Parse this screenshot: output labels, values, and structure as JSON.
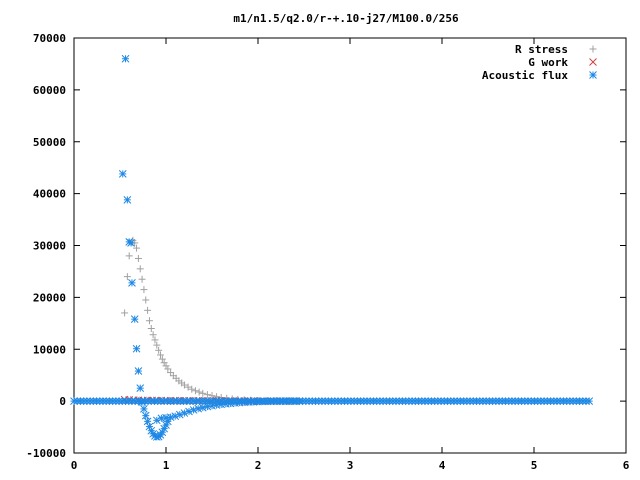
{
  "chart_data": {
    "type": "scatter",
    "title": "m1/n1.5/q2.0/r-+.10-j27/M100.0/256",
    "xlabel": "",
    "ylabel": "",
    "xlim": [
      0,
      6
    ],
    "ylim": [
      -10000,
      70000
    ],
    "x_ticks": [
      "0",
      "1",
      "2",
      "3",
      "4",
      "5",
      "6"
    ],
    "y_ticks": [
      "-10000",
      "0",
      "10000",
      "20000",
      "30000",
      "40000",
      "50000",
      "60000",
      "70000"
    ],
    "grid": false,
    "legend_position": "top-right",
    "series": [
      {
        "name": "R stress",
        "marker": "plus",
        "color": "#a0a0a0",
        "points": [
          [
            0.55,
            17000
          ],
          [
            0.58,
            24000
          ],
          [
            0.6,
            28000
          ],
          [
            0.62,
            30500
          ],
          [
            0.64,
            31000
          ],
          [
            0.66,
            30500
          ],
          [
            0.68,
            29500
          ],
          [
            0.7,
            27500
          ],
          [
            0.72,
            25500
          ],
          [
            0.74,
            23500
          ],
          [
            0.76,
            21500
          ],
          [
            0.78,
            19500
          ],
          [
            0.8,
            17500
          ],
          [
            0.82,
            15500
          ],
          [
            0.84,
            14000
          ],
          [
            0.86,
            12800
          ],
          [
            0.88,
            11800
          ],
          [
            0.9,
            10800
          ],
          [
            0.92,
            9800
          ],
          [
            0.94,
            8900
          ],
          [
            0.96,
            8100
          ],
          [
            0.98,
            7400
          ],
          [
            1.0,
            6800
          ],
          [
            1.02,
            6200
          ],
          [
            1.05,
            5500
          ],
          [
            1.08,
            4900
          ],
          [
            1.11,
            4400
          ],
          [
            1.14,
            3900
          ],
          [
            1.17,
            3500
          ],
          [
            1.2,
            3100
          ],
          [
            1.24,
            2700
          ],
          [
            1.28,
            2300
          ],
          [
            1.32,
            2000
          ],
          [
            1.36,
            1750
          ],
          [
            1.4,
            1500
          ],
          [
            1.45,
            1250
          ],
          [
            1.5,
            1050
          ],
          [
            1.55,
            850
          ],
          [
            1.6,
            700
          ],
          [
            1.66,
            550
          ],
          [
            1.72,
            430
          ],
          [
            1.78,
            330
          ],
          [
            1.85,
            250
          ],
          [
            1.92,
            180
          ],
          [
            2.0,
            120
          ],
          [
            2.1,
            80
          ],
          [
            2.2,
            50
          ],
          [
            2.35,
            25
          ],
          [
            2.45,
            10
          ]
        ]
      },
      {
        "name": "G work",
        "marker": "cross",
        "color": "#d04040",
        "points": [
          [
            0.55,
            300
          ],
          [
            0.6,
            250
          ],
          [
            0.65,
            200
          ],
          [
            0.7,
            180
          ],
          [
            0.75,
            160
          ],
          [
            0.8,
            150
          ],
          [
            0.85,
            140
          ],
          [
            0.9,
            130
          ],
          [
            0.95,
            120
          ],
          [
            1.0,
            110
          ],
          [
            1.05,
            100
          ],
          [
            1.1,
            95
          ],
          [
            1.15,
            90
          ],
          [
            1.2,
            85
          ],
          [
            1.25,
            80
          ],
          [
            1.3,
            75
          ],
          [
            1.35,
            70
          ],
          [
            1.4,
            65
          ],
          [
            1.45,
            60
          ],
          [
            1.5,
            55
          ],
          [
            1.55,
            50
          ],
          [
            1.6,
            45
          ],
          [
            1.65,
            40
          ],
          [
            1.7,
            35
          ],
          [
            1.75,
            30
          ],
          [
            1.8,
            27
          ],
          [
            1.85,
            24
          ],
          [
            1.9,
            21
          ],
          [
            1.95,
            18
          ],
          [
            2.0,
            15
          ],
          [
            2.05,
            12
          ],
          [
            2.1,
            10
          ],
          [
            2.15,
            8
          ],
          [
            2.2,
            6
          ],
          [
            2.25,
            5
          ],
          [
            2.3,
            4
          ],
          [
            2.35,
            3
          ],
          [
            2.4,
            2
          ],
          [
            2.45,
            1
          ]
        ]
      },
      {
        "name": "Acoustic flux",
        "marker": "star",
        "color": "#1e88e5",
        "points": [
          [
            0.56,
            66000
          ],
          [
            0.53,
            43800
          ],
          [
            0.58,
            38800
          ],
          [
            0.6,
            30700
          ],
          [
            0.62,
            30500
          ],
          [
            0.63,
            22800
          ],
          [
            0.66,
            15800
          ],
          [
            0.68,
            10100
          ],
          [
            0.7,
            5800
          ],
          [
            0.72,
            2500
          ],
          [
            0.74,
            -200
          ],
          [
            0.76,
            -1500
          ],
          [
            0.78,
            -2800
          ],
          [
            0.8,
            -3900
          ],
          [
            0.82,
            -4900
          ],
          [
            0.84,
            -5700
          ],
          [
            0.86,
            -6300
          ],
          [
            0.88,
            -6700
          ],
          [
            0.9,
            -6900
          ],
          [
            0.92,
            -6850
          ],
          [
            0.94,
            -6500
          ],
          [
            0.96,
            -6000
          ],
          [
            0.98,
            -5300
          ],
          [
            1.0,
            -4600
          ],
          [
            1.02,
            -3900
          ],
          [
            0.9,
            -3700
          ],
          [
            0.95,
            -3300
          ],
          [
            1.0,
            -3200
          ],
          [
            1.05,
            -3100
          ],
          [
            1.1,
            -2900
          ],
          [
            1.15,
            -2600
          ],
          [
            1.2,
            -2300
          ],
          [
            1.25,
            -2000
          ],
          [
            1.3,
            -1700
          ],
          [
            1.35,
            -1450
          ],
          [
            1.4,
            -1250
          ],
          [
            1.45,
            -1050
          ],
          [
            1.5,
            -900
          ],
          [
            1.55,
            -760
          ],
          [
            1.6,
            -640
          ],
          [
            1.65,
            -530
          ],
          [
            1.7,
            -440
          ],
          [
            1.75,
            -360
          ],
          [
            1.8,
            -290
          ],
          [
            1.85,
            -230
          ],
          [
            1.9,
            -180
          ],
          [
            1.95,
            -140
          ],
          [
            2.0,
            -100
          ],
          [
            2.05,
            -70
          ],
          [
            2.1,
            -45
          ],
          [
            2.15,
            -25
          ],
          [
            2.2,
            -10
          ],
          [
            2.25,
            -5
          ],
          [
            2.3,
            0
          ],
          [
            2.35,
            0
          ],
          [
            2.4,
            0
          ],
          [
            2.45,
            0
          ]
        ],
        "baseline": {
          "from": 0,
          "to": 5.6,
          "step": 0.035,
          "value": 0
        }
      }
    ]
  }
}
